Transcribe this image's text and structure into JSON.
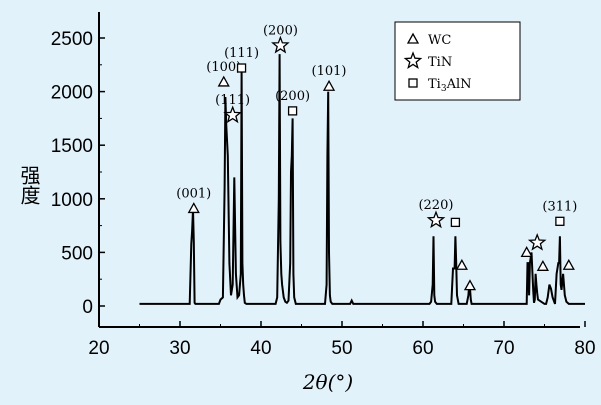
{
  "chart_data": {
    "type": "line",
    "xlabel": "2θ(°)",
    "ylabel": "强度",
    "xlim": [
      20,
      80
    ],
    "ylim": [
      0,
      2750
    ],
    "x_ticks": [
      20,
      30,
      40,
      50,
      60,
      70,
      80
    ],
    "y_ticks": [
      0,
      500,
      1000,
      1500,
      2000,
      2500
    ],
    "x_tick_labels": [
      "20",
      "30",
      "40",
      "50",
      "60",
      "70",
      "80"
    ],
    "y_tick_labels": [
      "0",
      "500",
      "1000",
      "1500",
      "2000",
      "2500"
    ],
    "grid": false,
    "legend_position": "top-right",
    "legend": [
      {
        "marker": "triangle",
        "label": "WC"
      },
      {
        "marker": "star",
        "label": "TiN"
      },
      {
        "marker": "square",
        "label": "Ti3AlN",
        "label_main": "Ti",
        "label_sub": "3",
        "label_tail": "AlN"
      }
    ],
    "series": [
      {
        "x": [
          25,
          31.2,
          31.4,
          31.5,
          31.6,
          31.7,
          31.8,
          31.9,
          34.8,
          35.0,
          35.3,
          35.5,
          35.6,
          35.7,
          35.9,
          36.1,
          36.3,
          36.5,
          36.7,
          36.9,
          37.1,
          37.3,
          37.5,
          37.6,
          37.7,
          37.8,
          37.9,
          38.0,
          38.2,
          41.8,
          42.0,
          42.2,
          42.3,
          42.4,
          42.5,
          42.6,
          42.8,
          43.0,
          43.2,
          43.4,
          43.6,
          43.7,
          43.8,
          43.9,
          44.0,
          44.1,
          44.3,
          47.9,
          48.1,
          48.2,
          48.3,
          48.4,
          48.5,
          48.6,
          48.8,
          51.0,
          51.2,
          51.4,
          60.8,
          61.0,
          61.2,
          61.3,
          61.4,
          61.5,
          61.7,
          61.9,
          63.5,
          63.7,
          63.9,
          64.0,
          64.1,
          64.2,
          64.4,
          65.4,
          65.6,
          65.7,
          65.8,
          65.9,
          66.0,
          72.6,
          72.8,
          72.9,
          73.0,
          73.1,
          73.2,
          73.4,
          73.6,
          73.7,
          73.8,
          73.9,
          74.0,
          74.1,
          74.2,
          75.0,
          75.2,
          75.4,
          75.6,
          75.8,
          76.0,
          76.3,
          76.5,
          76.7,
          76.8,
          76.9,
          77.0,
          77.1,
          77.3,
          77.5,
          77.7,
          78.0,
          80
        ],
        "y": [
          20,
          20,
          580,
          700,
          900,
          600,
          30,
          20,
          20,
          60,
          80,
          1100,
          1950,
          1700,
          1400,
          400,
          100,
          200,
          1200,
          300,
          80,
          100,
          300,
          2200,
          400,
          200,
          100,
          30,
          20,
          20,
          80,
          1000,
          2350,
          600,
          300,
          200,
          80,
          40,
          30,
          50,
          400,
          1250,
          1400,
          1750,
          300,
          80,
          20,
          20,
          200,
          1400,
          2000,
          500,
          100,
          40,
          20,
          20,
          50,
          20,
          20,
          40,
          200,
          650,
          100,
          40,
          20,
          20,
          20,
          350,
          350,
          650,
          400,
          100,
          20,
          20,
          100,
          200,
          160,
          60,
          20,
          20,
          20,
          400,
          400,
          100,
          400,
          500,
          150,
          30,
          60,
          300,
          200,
          120,
          60,
          20,
          20,
          80,
          200,
          160,
          80,
          20,
          300,
          400,
          400,
          650,
          200,
          150,
          300,
          100,
          40,
          20,
          20
        ]
      }
    ],
    "annotations": [
      {
        "x": 31.7,
        "y": 910,
        "marker": "triangle",
        "label": "(001)"
      },
      {
        "x": 35.4,
        "y": 2090,
        "marker": "triangle",
        "label": "(100)"
      },
      {
        "x": 36.5,
        "y": 1780,
        "marker": "star",
        "label": "(111)"
      },
      {
        "x": 37.6,
        "y": 2220,
        "marker": "square",
        "label": "(111)"
      },
      {
        "x": 42.4,
        "y": 2430,
        "marker": "star",
        "label": "(200)"
      },
      {
        "x": 43.9,
        "y": 1820,
        "marker": "square",
        "label": "(200)"
      },
      {
        "x": 48.4,
        "y": 2050,
        "marker": "triangle",
        "label": "(101)"
      },
      {
        "x": 61.6,
        "y": 800,
        "marker": "star",
        "label": "(220)"
      },
      {
        "x": 64.0,
        "y": 780,
        "marker": "square",
        "label": ""
      },
      {
        "x": 64.8,
        "y": 380,
        "marker": "triangle",
        "label": ""
      },
      {
        "x": 65.8,
        "y": 190,
        "marker": "triangle",
        "label": ""
      },
      {
        "x": 72.8,
        "y": 500,
        "marker": "triangle",
        "label": ""
      },
      {
        "x": 74.1,
        "y": 590,
        "marker": "star",
        "label": ""
      },
      {
        "x": 74.8,
        "y": 370,
        "marker": "triangle",
        "label": ""
      },
      {
        "x": 76.9,
        "y": 790,
        "marker": "square",
        "label": "(311)"
      },
      {
        "x": 78.0,
        "y": 380,
        "marker": "triangle",
        "label": ""
      }
    ]
  }
}
